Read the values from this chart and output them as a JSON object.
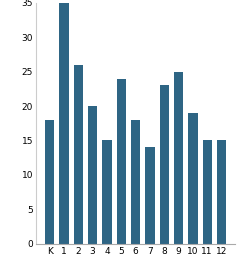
{
  "categories": [
    "K",
    "1",
    "2",
    "3",
    "4",
    "5",
    "6",
    "7",
    "8",
    "9",
    "10",
    "11",
    "12"
  ],
  "values": [
    18,
    35,
    26,
    20,
    15,
    24,
    18,
    14,
    23,
    25,
    19,
    15,
    15
  ],
  "bar_color": "#2e6584",
  "ylim": [
    0,
    35
  ],
  "yticks": [
    0,
    5,
    10,
    15,
    20,
    25,
    30,
    35
  ],
  "background_color": "#ffffff",
  "tick_fontsize": 6.5,
  "bar_width": 0.65
}
